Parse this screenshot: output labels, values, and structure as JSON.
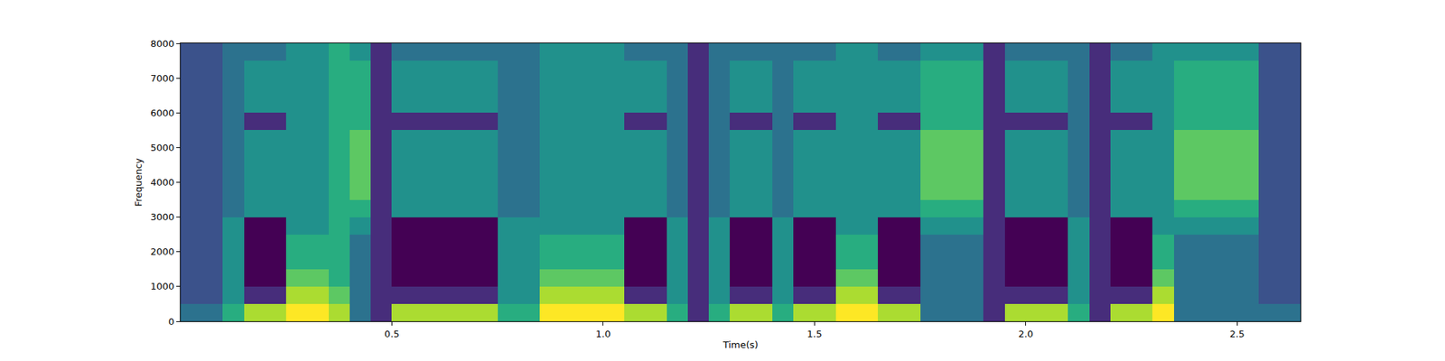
{
  "chart_data": {
    "type": "heatmap",
    "x_label": "Time(s)",
    "y_label": "Frequency",
    "color": "Viridis",
    "xlim": [
      0,
      2.65
    ],
    "ylim": [
      0,
      8000
    ],
    "xticks": [
      0.5,
      {
        "value": 1,
        "label": "1.0"
      },
      1.5,
      {
        "value": 2,
        "label": "2.0"
      },
      2.5
    ],
    "yticks": [
      0,
      1000,
      2000,
      3000,
      4000,
      5000,
      6000,
      7000,
      8000
    ],
    "x": [
      0.025,
      0.075,
      0.125,
      0.175,
      0.225,
      0.275,
      0.325,
      0.375,
      0.425,
      0.475,
      0.525,
      0.575,
      0.625,
      0.675,
      0.725,
      0.775,
      0.825,
      0.875,
      0.925,
      0.975,
      1.025,
      1.075,
      1.125,
      1.175,
      1.225,
      1.275,
      1.325,
      1.375,
      1.425,
      1.475,
      1.525,
      1.575,
      1.625,
      1.675,
      1.725,
      1.775,
      1.825,
      1.875,
      1.925,
      1.975,
      2.025,
      2.075,
      2.125,
      2.175,
      2.225,
      2.275,
      2.325,
      2.375,
      2.425,
      2.475,
      2.525,
      2.575,
      2.625
    ],
    "y": [
      250,
      750,
      1250,
      1750,
      2250,
      2750,
      3250,
      3750,
      4250,
      4750,
      5250,
      5750,
      6250,
      6750,
      7250,
      7750
    ],
    "cells": [
      [
        4,
        3,
        3,
        3,
        3,
        3,
        3,
        3,
        3,
        3,
        3,
        3,
        3,
        3,
        3,
        3
      ],
      [
        4,
        3,
        3,
        3,
        3,
        3,
        3,
        3,
        3,
        3,
        3,
        3,
        3,
        3,
        3,
        3
      ],
      [
        6,
        5,
        5,
        5,
        5,
        5,
        4,
        4,
        4,
        4,
        4,
        4,
        4,
        4,
        4,
        4
      ],
      [
        8,
        2,
        1,
        1,
        1,
        1,
        5,
        5,
        5,
        5,
        5,
        2,
        5,
        5,
        5,
        4
      ],
      [
        8,
        2,
        1,
        1,
        1,
        1,
        5,
        5,
        5,
        5,
        5,
        2,
        5,
        5,
        5,
        4
      ],
      [
        9,
        8,
        7,
        6,
        6,
        5,
        5,
        5,
        5,
        5,
        5,
        5,
        5,
        5,
        5,
        5
      ],
      [
        9,
        8,
        7,
        6,
        6,
        5,
        5,
        5,
        5,
        5,
        5,
        5,
        5,
        5,
        5,
        5
      ],
      [
        8,
        7,
        6,
        6,
        6,
        6,
        6,
        6,
        6,
        6,
        6,
        6,
        6,
        6,
        6,
        6
      ],
      [
        4,
        4,
        4,
        4,
        4,
        5,
        6,
        7,
        7,
        7,
        7,
        6,
        6,
        6,
        6,
        5
      ],
      [
        2,
        2,
        2,
        2,
        2,
        2,
        2,
        2,
        2,
        2,
        2,
        2,
        2,
        2,
        2,
        2
      ],
      [
        8,
        2,
        1,
        1,
        1,
        1,
        5,
        5,
        5,
        5,
        5,
        2,
        5,
        5,
        5,
        4
      ],
      [
        8,
        2,
        1,
        1,
        1,
        1,
        5,
        5,
        5,
        5,
        5,
        2,
        5,
        5,
        5,
        4
      ],
      [
        8,
        2,
        1,
        1,
        1,
        1,
        5,
        5,
        5,
        5,
        5,
        2,
        5,
        5,
        5,
        4
      ],
      [
        8,
        2,
        1,
        1,
        1,
        1,
        5,
        5,
        5,
        5,
        5,
        2,
        5,
        5,
        5,
        4
      ],
      [
        8,
        2,
        1,
        1,
        1,
        1,
        5,
        5,
        5,
        5,
        5,
        2,
        5,
        5,
        5,
        4
      ],
      [
        6,
        5,
        5,
        5,
        5,
        5,
        4,
        4,
        4,
        4,
        4,
        4,
        4,
        4,
        4,
        4
      ],
      [
        6,
        5,
        5,
        5,
        5,
        5,
        4,
        4,
        4,
        4,
        4,
        4,
        4,
        4,
        4,
        4
      ],
      [
        9,
        8,
        7,
        6,
        6,
        5,
        5,
        5,
        5,
        5,
        5,
        5,
        5,
        5,
        5,
        5
      ],
      [
        9,
        8,
        7,
        6,
        6,
        5,
        5,
        5,
        5,
        5,
        5,
        5,
        5,
        5,
        5,
        5
      ],
      [
        9,
        8,
        7,
        6,
        6,
        5,
        5,
        5,
        5,
        5,
        5,
        5,
        5,
        5,
        5,
        5
      ],
      [
        9,
        8,
        7,
        6,
        6,
        5,
        5,
        5,
        5,
        5,
        5,
        5,
        5,
        5,
        5,
        5
      ],
      [
        8,
        2,
        1,
        1,
        1,
        1,
        5,
        5,
        5,
        5,
        5,
        2,
        5,
        5,
        5,
        4
      ],
      [
        8,
        2,
        1,
        1,
        1,
        1,
        5,
        5,
        5,
        5,
        5,
        2,
        5,
        5,
        5,
        4
      ],
      [
        6,
        5,
        5,
        5,
        5,
        5,
        4,
        4,
        4,
        4,
        4,
        4,
        4,
        4,
        4,
        4
      ],
      [
        2,
        2,
        2,
        2,
        2,
        2,
        2,
        2,
        2,
        2,
        2,
        2,
        2,
        2,
        2,
        2
      ],
      [
        6,
        5,
        5,
        5,
        5,
        5,
        4,
        4,
        4,
        4,
        4,
        4,
        4,
        4,
        4,
        4
      ],
      [
        8,
        2,
        1,
        1,
        1,
        1,
        5,
        5,
        5,
        5,
        5,
        2,
        5,
        5,
        5,
        4
      ],
      [
        8,
        2,
        1,
        1,
        1,
        1,
        5,
        5,
        5,
        5,
        5,
        2,
        5,
        5,
        5,
        4
      ],
      [
        6,
        5,
        5,
        5,
        5,
        5,
        4,
        4,
        4,
        4,
        4,
        4,
        4,
        4,
        4,
        4
      ],
      [
        8,
        2,
        1,
        1,
        1,
        1,
        5,
        5,
        5,
        5,
        5,
        2,
        5,
        5,
        5,
        4
      ],
      [
        8,
        2,
        1,
        1,
        1,
        1,
        5,
        5,
        5,
        5,
        5,
        2,
        5,
        5,
        5,
        4
      ],
      [
        9,
        8,
        7,
        6,
        6,
        5,
        5,
        5,
        5,
        5,
        5,
        5,
        5,
        5,
        5,
        5
      ],
      [
        9,
        8,
        7,
        6,
        6,
        5,
        5,
        5,
        5,
        5,
        5,
        5,
        5,
        5,
        5,
        5
      ],
      [
        8,
        2,
        1,
        1,
        1,
        1,
        5,
        5,
        5,
        5,
        5,
        2,
        5,
        5,
        5,
        4
      ],
      [
        8,
        2,
        1,
        1,
        1,
        1,
        5,
        5,
        5,
        5,
        5,
        2,
        5,
        5,
        5,
        4
      ],
      [
        4,
        4,
        4,
        4,
        4,
        5,
        6,
        7,
        7,
        7,
        7,
        6,
        6,
        6,
        6,
        5
      ],
      [
        4,
        4,
        4,
        4,
        4,
        5,
        6,
        7,
        7,
        7,
        7,
        6,
        6,
        6,
        6,
        5
      ],
      [
        4,
        4,
        4,
        4,
        4,
        5,
        6,
        7,
        7,
        7,
        7,
        6,
        6,
        6,
        6,
        5
      ],
      [
        2,
        2,
        2,
        2,
        2,
        2,
        2,
        2,
        2,
        2,
        2,
        2,
        2,
        2,
        2,
        2
      ],
      [
        8,
        2,
        1,
        1,
        1,
        1,
        5,
        5,
        5,
        5,
        5,
        2,
        5,
        5,
        5,
        4
      ],
      [
        8,
        2,
        1,
        1,
        1,
        1,
        5,
        5,
        5,
        5,
        5,
        2,
        5,
        5,
        5,
        4
      ],
      [
        8,
        2,
        1,
        1,
        1,
        1,
        5,
        5,
        5,
        5,
        5,
        2,
        5,
        5,
        5,
        4
      ],
      [
        6,
        5,
        5,
        5,
        5,
        5,
        4,
        4,
        4,
        4,
        4,
        4,
        4,
        4,
        4,
        4
      ],
      [
        2,
        2,
        2,
        2,
        2,
        2,
        2,
        2,
        2,
        2,
        2,
        2,
        2,
        2,
        2,
        2
      ],
      [
        8,
        2,
        1,
        1,
        1,
        1,
        5,
        5,
        5,
        5,
        5,
        2,
        5,
        5,
        5,
        4
      ],
      [
        8,
        2,
        1,
        1,
        1,
        1,
        5,
        5,
        5,
        5,
        5,
        2,
        5,
        5,
        5,
        4
      ],
      [
        9,
        8,
        7,
        6,
        6,
        5,
        5,
        5,
        5,
        5,
        5,
        5,
        5,
        5,
        5,
        5
      ],
      [
        4,
        4,
        4,
        4,
        4,
        5,
        6,
        7,
        7,
        7,
        7,
        6,
        6,
        6,
        6,
        5
      ],
      [
        4,
        4,
        4,
        4,
        4,
        5,
        6,
        7,
        7,
        7,
        7,
        6,
        6,
        6,
        6,
        5
      ],
      [
        4,
        4,
        4,
        4,
        4,
        5,
        6,
        7,
        7,
        7,
        7,
        6,
        6,
        6,
        6,
        5
      ],
      [
        4,
        4,
        4,
        4,
        4,
        5,
        6,
        7,
        7,
        7,
        7,
        6,
        6,
        6,
        6,
        5
      ],
      [
        4,
        3,
        3,
        3,
        3,
        3,
        3,
        3,
        3,
        3,
        3,
        3,
        3,
        3,
        3,
        3
      ],
      [
        4,
        3,
        3,
        3,
        3,
        3,
        3,
        3,
        3,
        3,
        3,
        3,
        3,
        3,
        3,
        3
      ]
    ]
  }
}
